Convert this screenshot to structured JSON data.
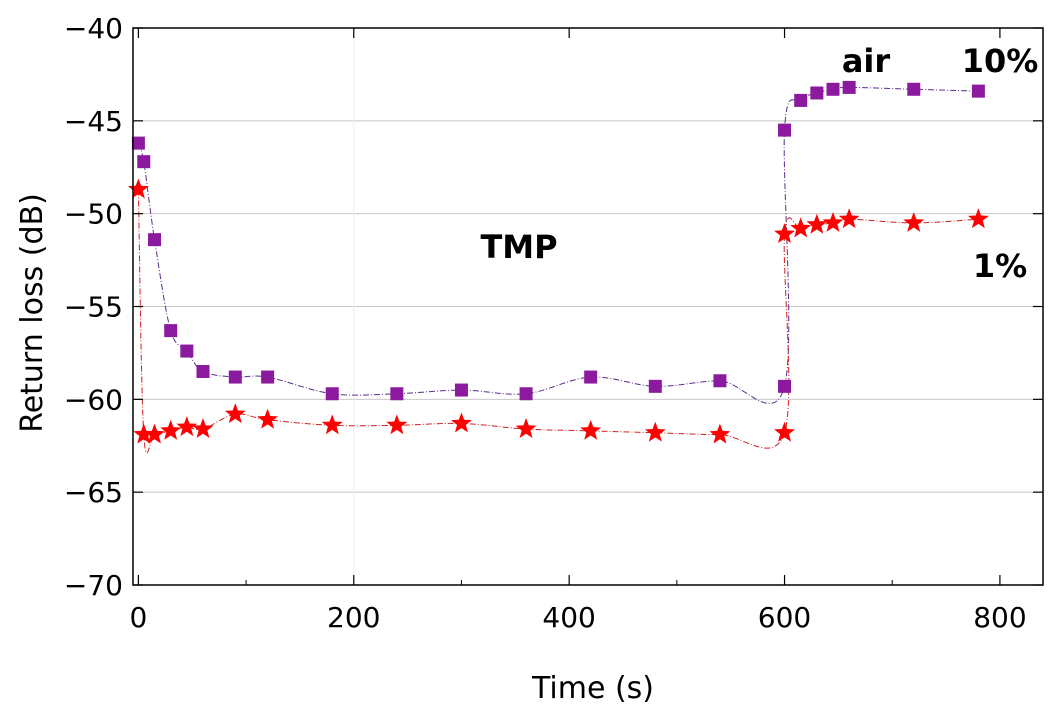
{
  "chart_data": {
    "type": "line",
    "title": "",
    "xlabel": "Time (s)",
    "ylabel": "Return loss (dB)",
    "xlim": [
      -5,
      840
    ],
    "ylim": [
      -70,
      -40
    ],
    "xticks": [
      0,
      200,
      400,
      600,
      800
    ],
    "yticks": [
      -70,
      -65,
      -60,
      -55,
      -50,
      -45,
      -40
    ],
    "xtick_labels": [
      "0",
      "200",
      "400",
      "600",
      "800"
    ],
    "ytick_labels": [
      "−70",
      "−65",
      "−60",
      "−55",
      "−50",
      "−45",
      "−40"
    ],
    "grid": "horizontal",
    "series": [
      {
        "name": "10%",
        "marker": "square",
        "color": "#8B1A9E",
        "line_color": "#5B2C8E",
        "x": [
          0,
          5,
          15,
          30,
          45,
          60,
          90,
          120,
          180,
          240,
          300,
          360,
          420,
          480,
          540,
          600,
          600,
          615,
          630,
          645,
          660,
          720,
          780
        ],
        "y": [
          -46.2,
          -47.2,
          -51.4,
          -56.3,
          -57.4,
          -58.5,
          -58.8,
          -58.8,
          -59.7,
          -59.7,
          -59.5,
          -59.7,
          -58.8,
          -59.3,
          -59.0,
          -59.3,
          -45.5,
          -43.9,
          -43.5,
          -43.3,
          -43.2,
          -43.3,
          -43.4
        ]
      },
      {
        "name": "1%",
        "marker": "star",
        "color": "#FF0000",
        "line_color": "#D02020",
        "x": [
          0,
          5,
          15,
          30,
          45,
          60,
          90,
          120,
          180,
          240,
          300,
          360,
          420,
          480,
          540,
          600,
          600,
          615,
          630,
          645,
          660,
          720,
          780
        ],
        "y": [
          -48.7,
          -61.9,
          -61.9,
          -61.7,
          -61.5,
          -61.6,
          -60.8,
          -61.1,
          -61.4,
          -61.4,
          -61.3,
          -61.6,
          -61.7,
          -61.8,
          -61.9,
          -61.8,
          -51.1,
          -50.8,
          -50.6,
          -50.5,
          -50.3,
          -50.5,
          -50.3
        ]
      }
    ],
    "annotations": {
      "tmp": "TMP",
      "air": "air",
      "ten_percent": "10%",
      "one_percent": "1%"
    }
  }
}
